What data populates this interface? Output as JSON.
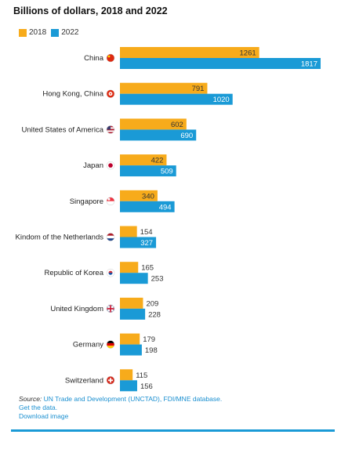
{
  "title": "Billions of dollars, 2018 and 2022",
  "colors": {
    "s2018": "#f7ab1b",
    "s2022": "#1a9ad6",
    "footer_link": "#1a8fd0",
    "rule": "#1a9ad6"
  },
  "chart_data": {
    "type": "bar",
    "orientation": "horizontal",
    "title": "Billions of dollars, 2018 and 2022",
    "legend_position": "top-left",
    "grid": false,
    "categories": [
      "China",
      "Hong Kong, China",
      "United States of America",
      "Japan",
      "Singapore",
      "Kindom of the Netherlands",
      "Republic of Korea",
      "United Kingdom",
      "Germany",
      "Switzerland"
    ],
    "flag_icons": [
      "china-flag-icon",
      "hong-kong-flag-icon",
      "usa-flag-icon",
      "japan-flag-icon",
      "singapore-flag-icon",
      "netherlands-flag-icon",
      "korea-flag-icon",
      "uk-flag-icon",
      "germany-flag-icon",
      "switzerland-flag-icon"
    ],
    "series": [
      {
        "name": "2018",
        "values": [
          1261,
          791,
          602,
          422,
          340,
          154,
          165,
          209,
          179,
          115
        ]
      },
      {
        "name": "2022",
        "values": [
          1817,
          1020,
          690,
          509,
          494,
          327,
          253,
          228,
          198,
          156
        ]
      }
    ],
    "xlim": [
      0,
      1817
    ]
  },
  "footer": {
    "source_label": "Source:",
    "source_text": " UN Trade and Development (UNCTAD), FDI/MNE database.",
    "get_data": "Get the data.",
    "download": "Download image"
  }
}
